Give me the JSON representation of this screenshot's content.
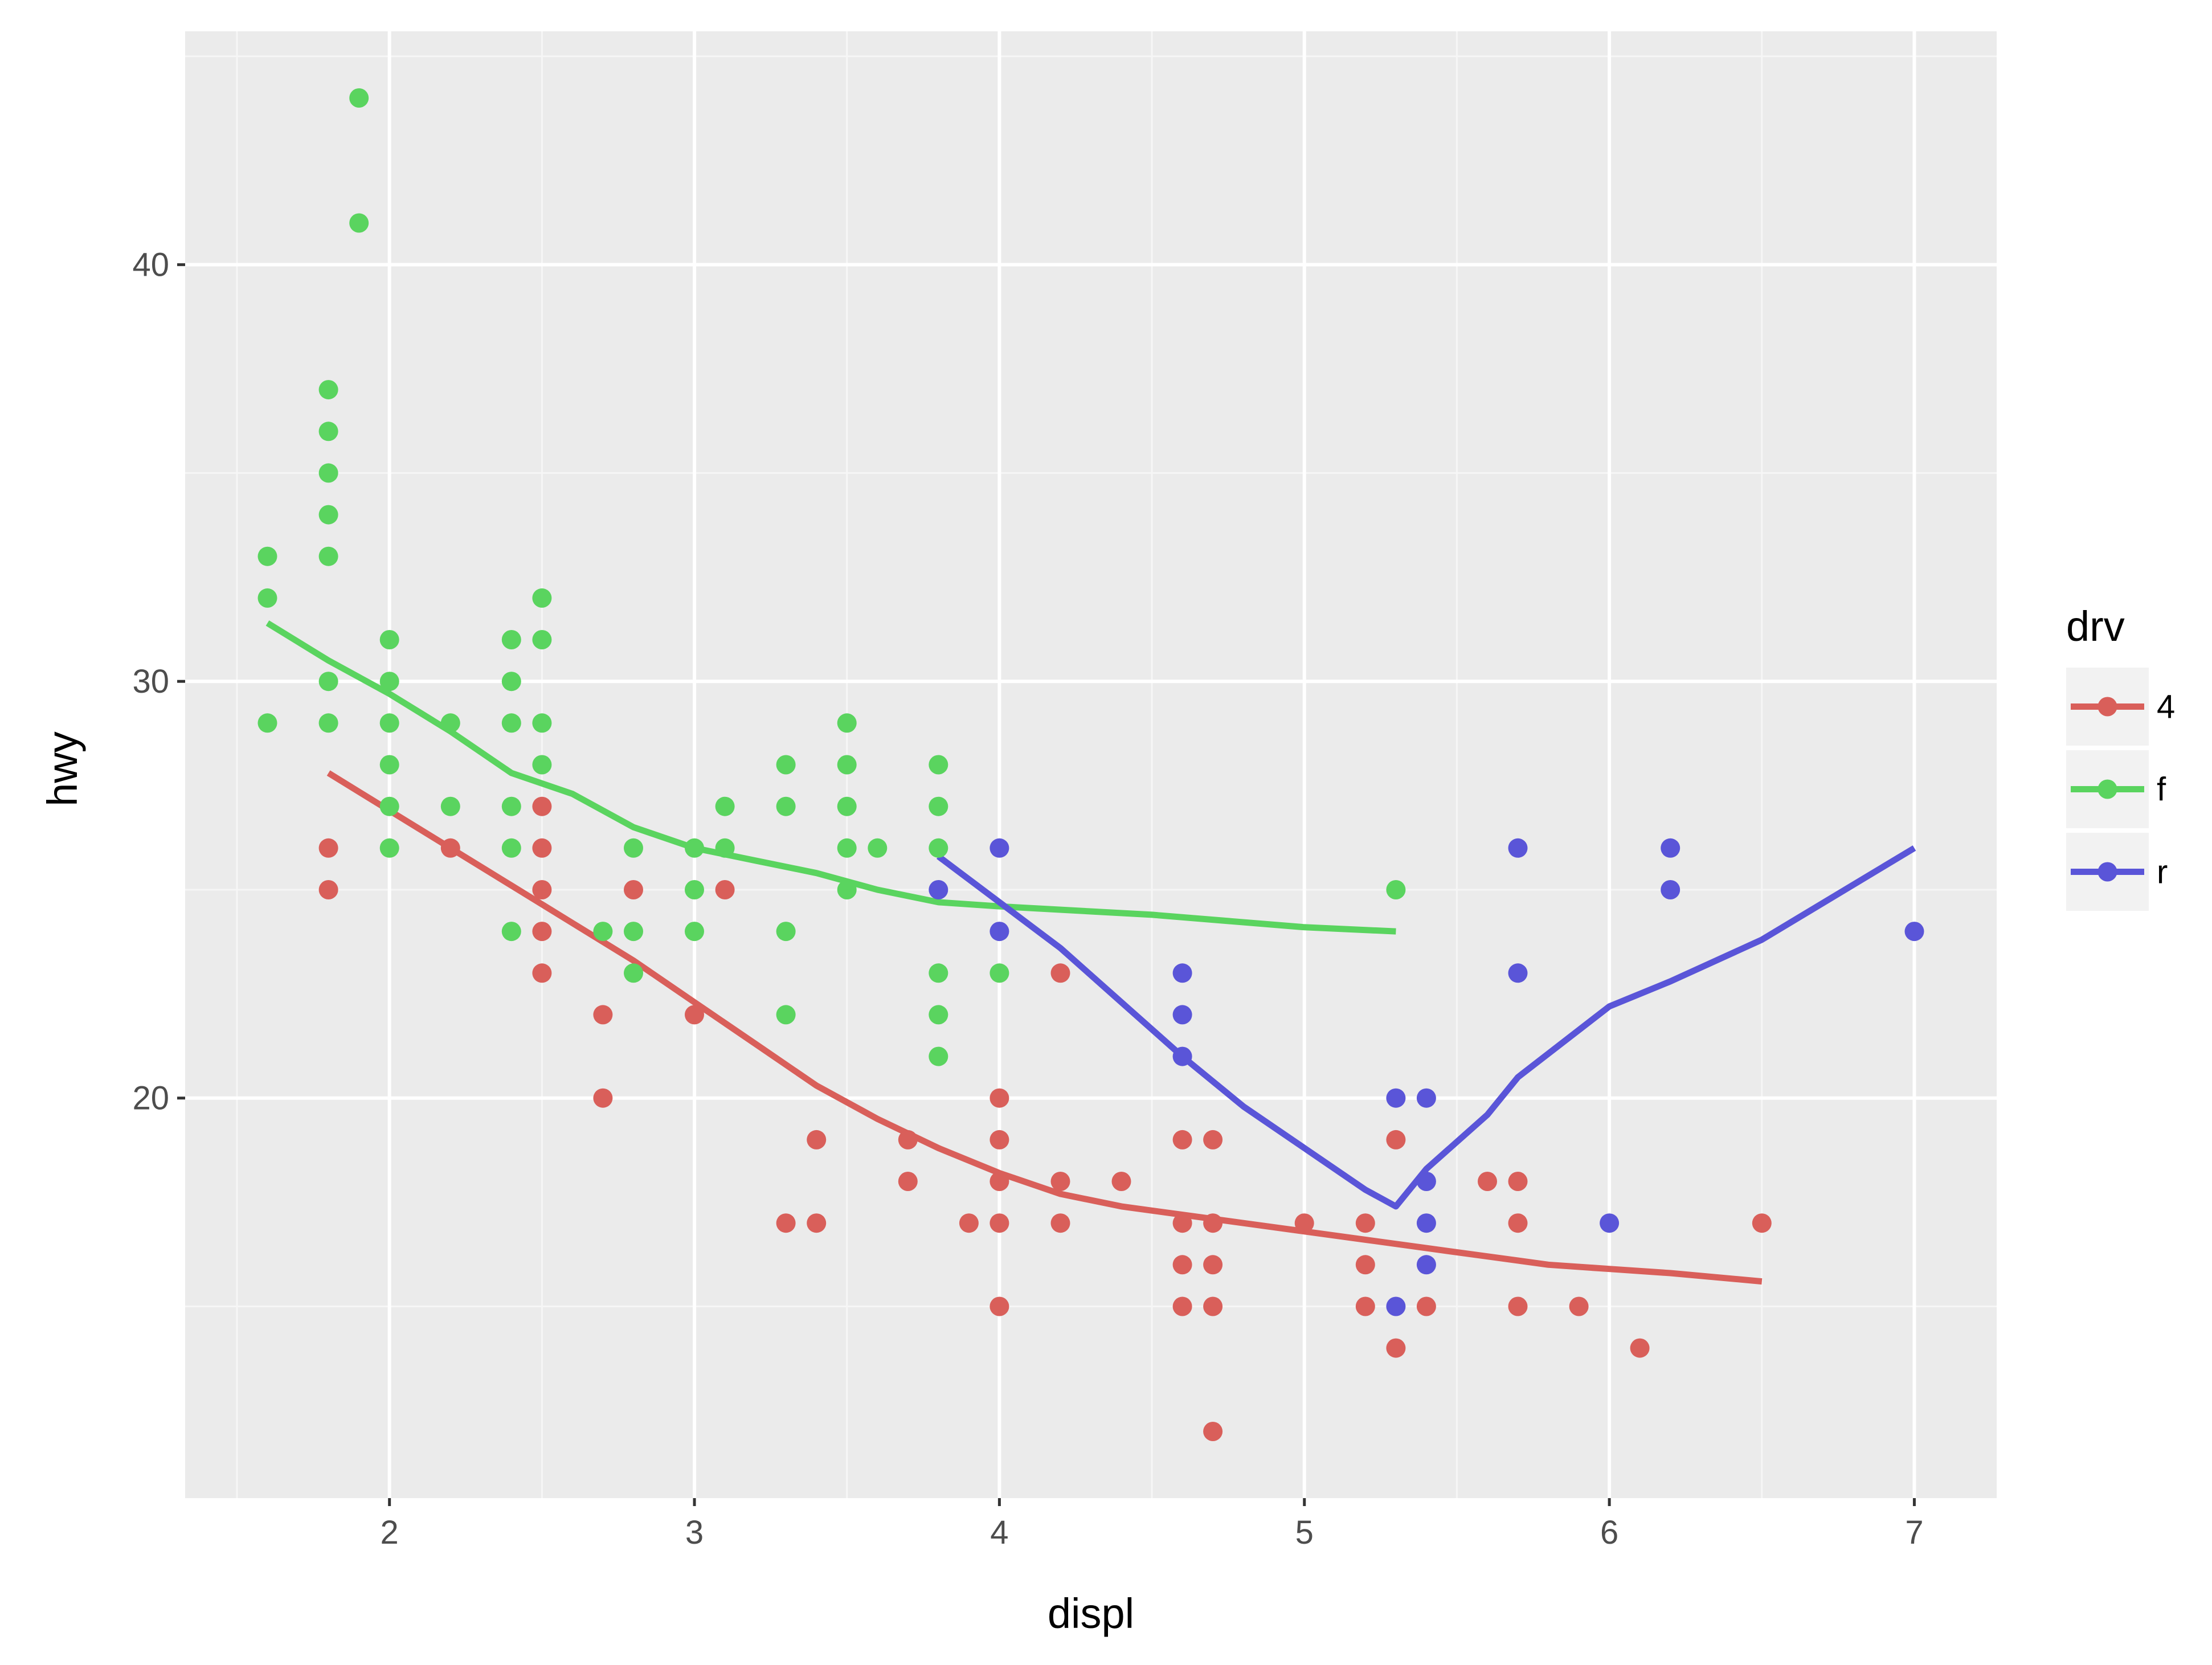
{
  "chart_data": {
    "type": "scatter",
    "xlabel": "displ",
    "ylabel": "hwy",
    "xlim": [
      1.33,
      7.27
    ],
    "ylim": [
      10.4,
      45.6
    ],
    "x_ticks": [
      2,
      3,
      4,
      5,
      6,
      7
    ],
    "y_ticks": [
      20,
      30,
      40
    ],
    "grid": true,
    "legend": {
      "title": "drv",
      "position": "right"
    },
    "series": [
      {
        "name": "4",
        "color": "#d95f5a",
        "points": [
          [
            1.8,
            26
          ],
          [
            1.8,
            25
          ],
          [
            2.2,
            26
          ],
          [
            2.5,
            27
          ],
          [
            2.5,
            26
          ],
          [
            2.5,
            25
          ],
          [
            2.5,
            24
          ],
          [
            2.5,
            23
          ],
          [
            2.7,
            22
          ],
          [
            2.7,
            20
          ],
          [
            2.8,
            25
          ],
          [
            3.0,
            22
          ],
          [
            3.1,
            25
          ],
          [
            3.3,
            17
          ],
          [
            3.4,
            19
          ],
          [
            3.4,
            17
          ],
          [
            3.7,
            19
          ],
          [
            3.7,
            18
          ],
          [
            3.9,
            17
          ],
          [
            4.0,
            20
          ],
          [
            4.0,
            19
          ],
          [
            4.0,
            18
          ],
          [
            4.0,
            17
          ],
          [
            4.0,
            15
          ],
          [
            4.2,
            23
          ],
          [
            4.2,
            18
          ],
          [
            4.2,
            17
          ],
          [
            4.4,
            18
          ],
          [
            4.6,
            19
          ],
          [
            4.6,
            17
          ],
          [
            4.6,
            16
          ],
          [
            4.6,
            15
          ],
          [
            4.7,
            19
          ],
          [
            4.7,
            17
          ],
          [
            4.7,
            16
          ],
          [
            4.7,
            15
          ],
          [
            4.7,
            12
          ],
          [
            5.0,
            17
          ],
          [
            5.2,
            17
          ],
          [
            5.2,
            16
          ],
          [
            5.2,
            15
          ],
          [
            5.3,
            19
          ],
          [
            5.3,
            14
          ],
          [
            5.4,
            15
          ],
          [
            5.6,
            18
          ],
          [
            5.7,
            18
          ],
          [
            5.7,
            17
          ],
          [
            5.7,
            15
          ],
          [
            5.9,
            15
          ],
          [
            6.1,
            14
          ],
          [
            6.5,
            17
          ]
        ],
        "smooth": [
          [
            1.8,
            27.8
          ],
          [
            2.0,
            26.9
          ],
          [
            2.2,
            26.0
          ],
          [
            2.4,
            25.1
          ],
          [
            2.6,
            24.2
          ],
          [
            2.8,
            23.3
          ],
          [
            3.0,
            22.3
          ],
          [
            3.2,
            21.3
          ],
          [
            3.4,
            20.3
          ],
          [
            3.6,
            19.5
          ],
          [
            3.8,
            18.8
          ],
          [
            4.0,
            18.2
          ],
          [
            4.2,
            17.7
          ],
          [
            4.4,
            17.4
          ],
          [
            4.6,
            17.2
          ],
          [
            4.8,
            17.0
          ],
          [
            5.0,
            16.8
          ],
          [
            5.2,
            16.6
          ],
          [
            5.4,
            16.4
          ],
          [
            5.6,
            16.2
          ],
          [
            5.8,
            16.0
          ],
          [
            6.0,
            15.9
          ],
          [
            6.2,
            15.8
          ],
          [
            6.5,
            15.6
          ]
        ]
      },
      {
        "name": "f",
        "color": "#5ad45f",
        "points": [
          [
            1.6,
            33
          ],
          [
            1.6,
            32
          ],
          [
            1.6,
            29
          ],
          [
            1.8,
            37
          ],
          [
            1.8,
            36
          ],
          [
            1.8,
            35
          ],
          [
            1.8,
            34
          ],
          [
            1.8,
            33
          ],
          [
            1.8,
            30
          ],
          [
            1.8,
            29
          ],
          [
            1.9,
            44
          ],
          [
            1.9,
            41
          ],
          [
            2.0,
            31
          ],
          [
            2.0,
            30
          ],
          [
            2.0,
            29
          ],
          [
            2.0,
            28
          ],
          [
            2.0,
            27
          ],
          [
            2.0,
            26
          ],
          [
            2.2,
            29
          ],
          [
            2.2,
            27
          ],
          [
            2.4,
            31
          ],
          [
            2.4,
            30
          ],
          [
            2.4,
            29
          ],
          [
            2.4,
            27
          ],
          [
            2.4,
            26
          ],
          [
            2.4,
            24
          ],
          [
            2.5,
            32
          ],
          [
            2.5,
            31
          ],
          [
            2.5,
            29
          ],
          [
            2.5,
            28
          ],
          [
            2.7,
            24
          ],
          [
            2.8,
            26
          ],
          [
            2.8,
            24
          ],
          [
            2.8,
            23
          ],
          [
            3.0,
            26
          ],
          [
            3.0,
            25
          ],
          [
            3.0,
            24
          ],
          [
            3.1,
            27
          ],
          [
            3.1,
            26
          ],
          [
            3.3,
            28
          ],
          [
            3.3,
            27
          ],
          [
            3.3,
            24
          ],
          [
            3.3,
            22
          ],
          [
            3.5,
            29
          ],
          [
            3.5,
            28
          ],
          [
            3.5,
            27
          ],
          [
            3.5,
            26
          ],
          [
            3.5,
            25
          ],
          [
            3.6,
            26
          ],
          [
            3.8,
            28
          ],
          [
            3.8,
            27
          ],
          [
            3.8,
            26
          ],
          [
            3.8,
            23
          ],
          [
            3.8,
            22
          ],
          [
            3.8,
            21
          ],
          [
            4.0,
            23
          ],
          [
            5.3,
            25
          ]
        ],
        "smooth": [
          [
            1.6,
            31.4
          ],
          [
            1.8,
            30.5
          ],
          [
            2.0,
            29.7
          ],
          [
            2.2,
            28.8
          ],
          [
            2.4,
            27.8
          ],
          [
            2.6,
            27.3
          ],
          [
            2.8,
            26.5
          ],
          [
            3.0,
            26.0
          ],
          [
            3.2,
            25.7
          ],
          [
            3.4,
            25.4
          ],
          [
            3.6,
            25.0
          ],
          [
            3.8,
            24.7
          ],
          [
            4.0,
            24.6
          ],
          [
            4.5,
            24.4
          ],
          [
            5.0,
            24.1
          ],
          [
            5.3,
            24.0
          ]
        ]
      },
      {
        "name": "r",
        "color": "#5a55d8",
        "points": [
          [
            3.8,
            25
          ],
          [
            4.0,
            26
          ],
          [
            4.0,
            24
          ],
          [
            4.6,
            23
          ],
          [
            4.6,
            22
          ],
          [
            4.6,
            21
          ],
          [
            5.3,
            20
          ],
          [
            5.3,
            15
          ],
          [
            5.4,
            20
          ],
          [
            5.4,
            18
          ],
          [
            5.4,
            17
          ],
          [
            5.4,
            16
          ],
          [
            5.7,
            26
          ],
          [
            5.7,
            23
          ],
          [
            6.0,
            17
          ],
          [
            6.2,
            26
          ],
          [
            6.2,
            25
          ],
          [
            7.0,
            24
          ]
        ],
        "smooth": [
          [
            3.8,
            25.8
          ],
          [
            4.0,
            24.7
          ],
          [
            4.2,
            23.6
          ],
          [
            4.4,
            22.3
          ],
          [
            4.6,
            21.0
          ],
          [
            4.8,
            19.8
          ],
          [
            5.0,
            18.8
          ],
          [
            5.2,
            17.8
          ],
          [
            5.3,
            17.4
          ],
          [
            5.4,
            18.3
          ],
          [
            5.6,
            19.6
          ],
          [
            5.7,
            20.5
          ],
          [
            6.0,
            22.2
          ],
          [
            6.2,
            22.8
          ],
          [
            6.5,
            23.8
          ],
          [
            7.0,
            26.0
          ]
        ]
      }
    ]
  }
}
